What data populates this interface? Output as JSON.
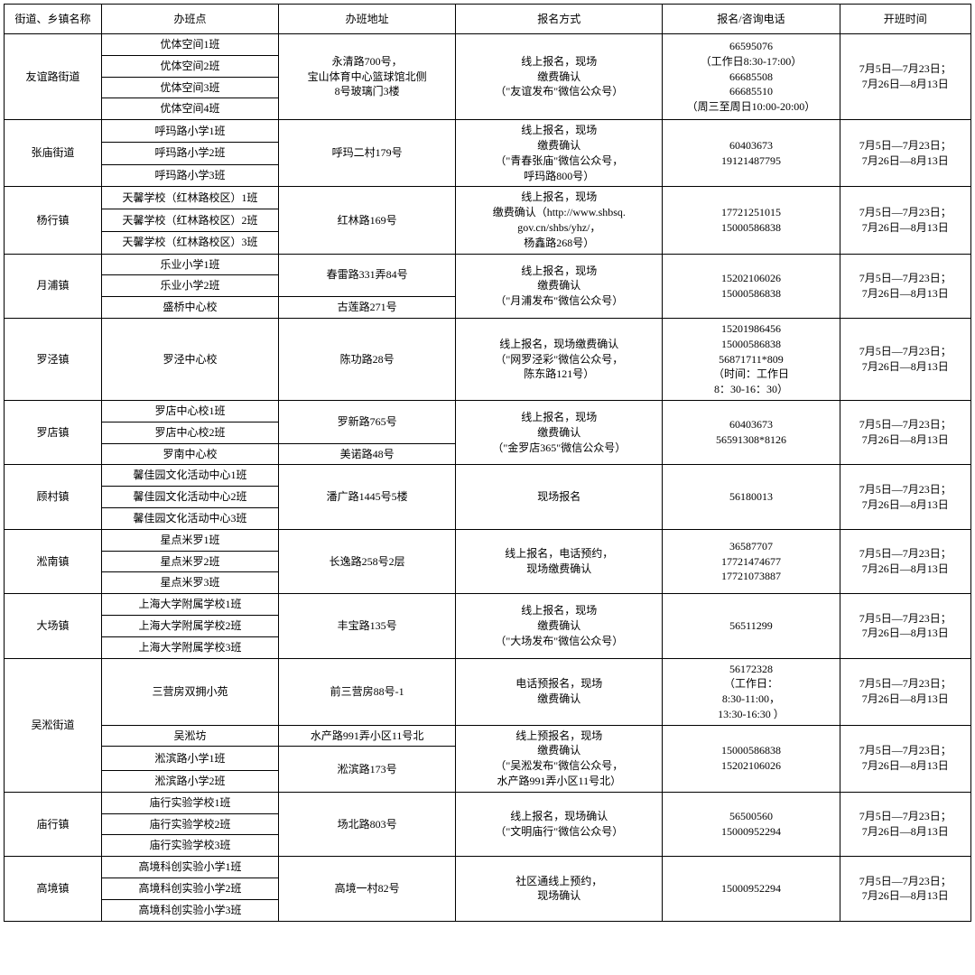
{
  "headers": [
    "街道、乡镇名称",
    "办班点",
    "办班地址",
    "报名方式",
    "报名/咨询电话",
    "开班时间"
  ],
  "default_time": "7月5日—7月23日；\n7月26日—8月13日",
  "groups": [
    {
      "name": "友谊路街道",
      "classes": [
        "优体空间1班",
        "优体空间2班",
        "优体空间3班",
        "优体空间4班"
      ],
      "addr": "永清路700号，\n宝山体育中心篮球馆北侧\n8号玻璃门3楼",
      "signup": "线上报名，现场\n缴费确认\n（\"友谊发布\"微信公众号）",
      "phone": "66595076\n（工作日8:30-17:00）\n66685508\n66685510\n（周三至周日10:00-20:00）"
    },
    {
      "name": "张庙街道",
      "classes": [
        "呼玛路小学1班",
        "呼玛路小学2班",
        "呼玛路小学3班"
      ],
      "addr": "呼玛二村179号",
      "signup": "线上报名，现场\n缴费确认\n（\"青春张庙\"微信公众号，\n呼玛路800号）",
      "phone": "60403673\n19121487795"
    },
    {
      "name": "杨行镇",
      "classes": [
        "天馨学校（红林路校区）1班",
        "天馨学校（红林路校区）2班",
        "天馨学校（红林路校区）3班"
      ],
      "addr": "红林路169号",
      "signup": "线上报名，现场\n缴费确认（http://www.shbsq.\ngov.cn/shbs/yhz/，\n杨鑫路268号）",
      "phone": "17721251015\n15000586838"
    },
    {
      "name": "月浦镇",
      "subrows": [
        {
          "classes": [
            "乐业小学1班",
            "乐业小学2班"
          ],
          "addr": "春雷路331弄84号"
        },
        {
          "classes": [
            "盛桥中心校"
          ],
          "addr": "古莲路271号"
        }
      ],
      "signup": "线上报名，现场\n缴费确认\n（\"月浦发布\"微信公众号）",
      "phone": "15202106026\n15000586838"
    },
    {
      "name": "罗泾镇",
      "classes": [
        "罗泾中心校"
      ],
      "addr": "陈功路28号",
      "signup": "线上报名，现场缴费确认\n（\"网罗泾彩\"微信公众号，\n陈东路121号）",
      "phone": "15201986456\n15000586838\n56871711*809\n（时间：工作日\n8：30-16：30）"
    },
    {
      "name": "罗店镇",
      "subrows": [
        {
          "classes": [
            "罗店中心校1班",
            "罗店中心校2班"
          ],
          "addr": "罗新路765号"
        },
        {
          "classes": [
            "罗南中心校"
          ],
          "addr": "美诺路48号"
        }
      ],
      "signup": "线上报名，现场\n缴费确认\n（\"金罗店365\"微信公众号）",
      "phone": "60403673\n56591308*8126"
    },
    {
      "name": "顾村镇",
      "classes": [
        "馨佳园文化活动中心1班",
        "馨佳园文化活动中心2班",
        "馨佳园文化活动中心3班"
      ],
      "addr": "潘广路1445号5楼",
      "signup": "现场报名",
      "phone": "56180013"
    },
    {
      "name": "淞南镇",
      "classes": [
        "星点米罗1班",
        "星点米罗2班",
        "星点米罗3班"
      ],
      "addr": "长逸路258号2层",
      "signup": "线上报名，电话预约，\n现场缴费确认",
      "phone": "36587707\n17721474677\n17721073887"
    },
    {
      "name": "大场镇",
      "classes": [
        "上海大学附属学校1班",
        "上海大学附属学校2班",
        "上海大学附属学校3班"
      ],
      "addr": "丰宝路135号",
      "signup": "线上报名，现场\n缴费确认\n（\"大场发布\"微信公众号）",
      "phone": "56511299"
    },
    {
      "name": "吴淞街道",
      "rows": [
        {
          "class": "三营房双拥小苑",
          "addr": "前三营房88号-1",
          "signup": "电话预报名，现场\n缴费确认",
          "phone": "56172328\n（工作日：\n8:30-11:00，\n13:30-16:30 ）",
          "time_own": true
        },
        {
          "class": "吴淞坊",
          "addr": "水产路991弄小区11号北",
          "signup": "线上预报名，现场\n缴费确认\n（\"吴淞发布\"微信公众号，\n水产路991弄小区11号北）",
          "signup_rows": 3,
          "phone": "15000586838\n15202106026",
          "phone_rows": 3,
          "time_own": true,
          "time_rows": 3
        },
        {
          "class": "淞滨路小学1班",
          "addr": "淞滨路173号",
          "addr_rows": 2
        },
        {
          "class": "淞滨路小学2班"
        }
      ]
    },
    {
      "name": "庙行镇",
      "classes": [
        "庙行实验学校1班",
        "庙行实验学校2班",
        "庙行实验学校3班"
      ],
      "addr": "场北路803号",
      "signup": "线上报名，现场确认\n（\"文明庙行\"微信公众号）",
      "phone": "56500560\n15000952294"
    },
    {
      "name": "高境镇",
      "classes": [
        "高境科创实验小学1班",
        "高境科创实验小学2班",
        "高境科创实验小学3班"
      ],
      "addr": "高境一村82号",
      "signup": "社区通线上预约，\n现场确认",
      "phone": "15000952294"
    }
  ]
}
